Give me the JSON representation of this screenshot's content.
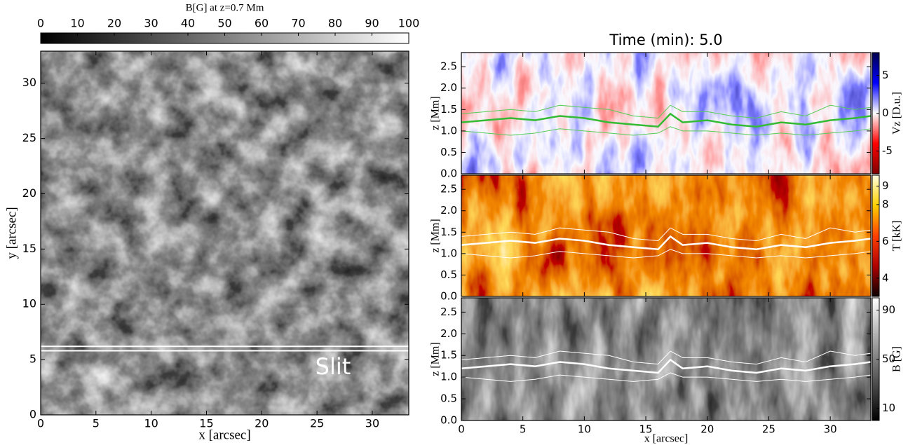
{
  "chart_data": [
    {
      "type": "heatmap",
      "colormap": "gray",
      "xlabel": "x [arcsec]",
      "ylabel": "y [arcsec]",
      "xlim": [
        0,
        33.3
      ],
      "ylim": [
        0,
        32.9
      ],
      "xticks": [
        0,
        5,
        10,
        15,
        20,
        25,
        30
      ],
      "yticks": [
        0,
        5,
        10,
        15,
        20,
        25,
        30
      ],
      "annotation": "Slit",
      "slit_y": [
        5.8,
        6.2
      ],
      "colorbar": {
        "label": "B[G] at z=0.7 Mm",
        "lim": [
          0,
          100
        ],
        "ticks": [
          0,
          10,
          20,
          30,
          40,
          50,
          60,
          70,
          80,
          90,
          100
        ]
      }
    },
    {
      "type": "heatmap",
      "colormap": "seismic",
      "title": "Time (min): 5.0",
      "ylabel": "z [Mm]",
      "ylim": [
        0,
        2.83
      ],
      "yticks": [
        {
          "value": 0,
          "label": "0.0"
        },
        0.5,
        {
          "value": 1,
          "label": "1.0"
        },
        1.5,
        {
          "value": 2,
          "label": "2.0"
        },
        2.5
      ],
      "x": [
        0,
        2,
        4,
        6,
        8,
        10,
        12,
        14,
        16,
        17,
        18,
        20,
        22,
        24,
        26,
        28,
        30,
        32,
        33.3
      ],
      "series": [
        {
          "color": "#33bb33",
          "values": [
            1.2,
            1.25,
            1.3,
            1.25,
            1.35,
            1.3,
            1.2,
            1.15,
            1.1,
            1.4,
            1.2,
            1.25,
            1.15,
            1.1,
            1.2,
            1.15,
            1.25,
            1.3,
            1.35
          ]
        },
        {
          "color": "#55cc55",
          "values": [
            1.4,
            1.45,
            1.5,
            1.45,
            1.6,
            1.55,
            1.5,
            1.35,
            1.3,
            1.6,
            1.45,
            1.45,
            1.35,
            1.3,
            1.45,
            1.35,
            1.6,
            1.5,
            1.55
          ]
        },
        {
          "color": "#55cc55",
          "values": [
            1.0,
            0.95,
            0.9,
            0.95,
            1.05,
            1.0,
            0.95,
            0.9,
            0.95,
            1.1,
            1.0,
            1.0,
            0.95,
            0.9,
            0.95,
            0.9,
            0.95,
            1.0,
            1.05
          ]
        }
      ],
      "colorbar": {
        "label": "Vz [D.u.]",
        "lim": [
          -8,
          8
        ],
        "ticks": [
          -5,
          0,
          5
        ]
      }
    },
    {
      "type": "heatmap",
      "colormap": "hot",
      "ylabel": "z [Mm]",
      "ylim": [
        0,
        2.83
      ],
      "yticks": [
        {
          "value": 0,
          "label": "0.0"
        },
        0.5,
        {
          "value": 1,
          "label": "1.0"
        },
        1.5,
        {
          "value": 2,
          "label": "2.0"
        },
        2.5
      ],
      "x": [
        0,
        2,
        4,
        6,
        8,
        10,
        12,
        14,
        16,
        17,
        18,
        20,
        22,
        24,
        26,
        28,
        30,
        32,
        33.3
      ],
      "series": [
        {
          "color": "#ffffff",
          "values": [
            1.2,
            1.25,
            1.3,
            1.25,
            1.35,
            1.3,
            1.2,
            1.15,
            1.1,
            1.4,
            1.2,
            1.25,
            1.15,
            1.1,
            1.2,
            1.15,
            1.25,
            1.3,
            1.35
          ]
        },
        {
          "color": "#ffffff",
          "values": [
            1.4,
            1.45,
            1.5,
            1.45,
            1.6,
            1.55,
            1.5,
            1.35,
            1.3,
            1.6,
            1.45,
            1.45,
            1.35,
            1.3,
            1.45,
            1.35,
            1.6,
            1.5,
            1.55
          ]
        },
        {
          "color": "#ffffff",
          "values": [
            1.0,
            0.95,
            0.9,
            0.95,
            1.05,
            1.0,
            0.95,
            0.9,
            0.95,
            1.1,
            1.0,
            1.0,
            0.95,
            0.9,
            0.95,
            0.9,
            0.95,
            1.0,
            1.05
          ]
        }
      ],
      "colorbar": {
        "label": "T [kK]",
        "lim": [
          3,
          9.6
        ],
        "ticks": [
          4,
          6,
          8,
          9
        ]
      }
    },
    {
      "type": "heatmap",
      "colormap": "gray",
      "ylabel": "z [Mm]",
      "xlabel": "x [arcsec]",
      "xlim": [
        0,
        33.3
      ],
      "xticks": [
        0,
        5,
        10,
        15,
        20,
        25,
        30
      ],
      "ylim": [
        0,
        2.83
      ],
      "yticks": [
        {
          "value": 0,
          "label": "0.0"
        },
        0.5,
        {
          "value": 1,
          "label": "1.0"
        },
        1.5,
        {
          "value": 2,
          "label": "2.0"
        },
        2.5
      ],
      "x": [
        0,
        2,
        4,
        6,
        8,
        10,
        12,
        14,
        16,
        17,
        18,
        20,
        22,
        24,
        26,
        28,
        30,
        32,
        33.3
      ],
      "series": [
        {
          "color": "#ffffff",
          "values": [
            1.2,
            1.25,
            1.3,
            1.25,
            1.35,
            1.3,
            1.2,
            1.15,
            1.1,
            1.4,
            1.2,
            1.25,
            1.15,
            1.1,
            1.2,
            1.15,
            1.25,
            1.3,
            1.35
          ]
        },
        {
          "color": "#ffffff",
          "values": [
            1.4,
            1.45,
            1.5,
            1.45,
            1.6,
            1.55,
            1.5,
            1.35,
            1.3,
            1.6,
            1.45,
            1.45,
            1.35,
            1.3,
            1.45,
            1.35,
            1.6,
            1.5,
            1.55
          ]
        },
        {
          "color": "#ffffff",
          "values": [
            1.0,
            0.95,
            0.9,
            0.95,
            1.05,
            1.0,
            0.95,
            0.9,
            0.95,
            1.1,
            1.0,
            1.0,
            0.95,
            0.9,
            0.95,
            0.9,
            0.95,
            1.0,
            1.05
          ]
        }
      ],
      "colorbar": {
        "label": "B [G]",
        "lim": [
          0,
          100
        ],
        "ticks": [
          10,
          50,
          90
        ]
      }
    }
  ]
}
